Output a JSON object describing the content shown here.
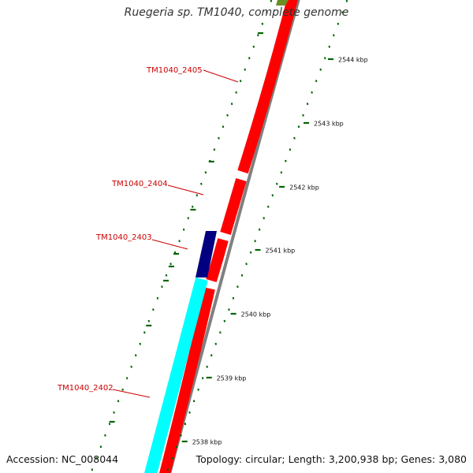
{
  "title": "Ruegeria sp. TM1040, complete genome",
  "accession": "Accession: NC_008044",
  "summary": "Topology: circular; Length: 3,200,938 bp; Genes: 3,080",
  "colors": {
    "reverse_gene": "#ff0000",
    "forward_gene_cyan": "#00ffff",
    "forward_gene_navy": "#000080",
    "forward_gene_top": "#6b8e23",
    "backbone": "#808080",
    "ticks": "#006400",
    "gene_labels": "#cc0000"
  },
  "ruler": {
    "unit": "kbp",
    "ticks": [
      {
        "label": "2538 kbp"
      },
      {
        "label": "2539 kbp"
      },
      {
        "label": "2540 kbp"
      },
      {
        "label": "2541 kbp"
      },
      {
        "label": "2542 kbp"
      },
      {
        "label": "2543 kbp"
      },
      {
        "label": "2544 kbp"
      }
    ]
  },
  "gene_labels": [
    {
      "name": "TM1040_2405"
    },
    {
      "name": "TM1040_2404"
    },
    {
      "name": "TM1040_2403"
    },
    {
      "name": "TM1040_2402"
    }
  ]
}
